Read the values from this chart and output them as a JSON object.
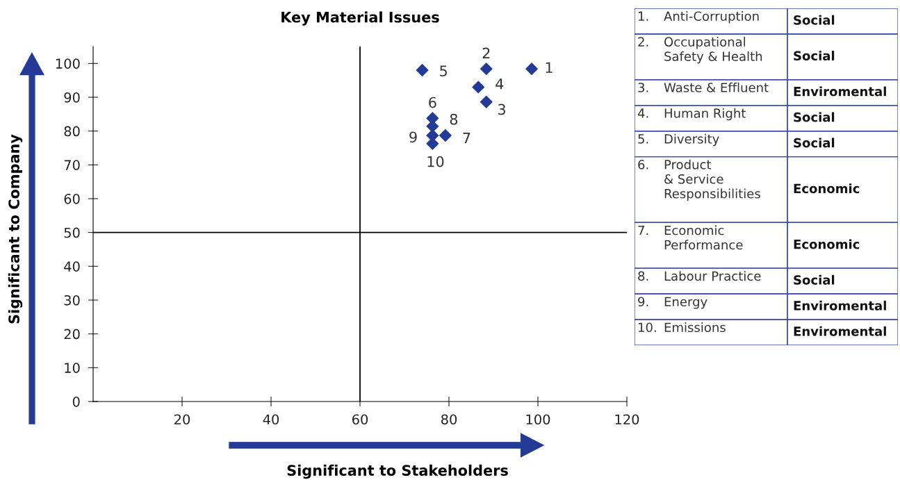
{
  "chart_data": [
    {
      "type": "scatter",
      "title": "Key Material Issues",
      "xlabel": "Significant to Stakeholders",
      "ylabel": "Significant to Company",
      "x": [
        98.6,
        88.4,
        88.4,
        86.6,
        74.0,
        76.3,
        79.2,
        76.3,
        76.3,
        76.3
      ],
      "series": [
        {
          "color": "#233b96",
          "values": [
            98.4,
            98.4,
            88.6,
            93.0,
            98.0,
            83.8,
            78.7,
            81.4,
            78.7,
            76.3
          ]
        }
      ],
      "marker": "diamond",
      "grid": false,
      "legend": false,
      "xlim": [
        0,
        120
      ],
      "xticks": [
        20,
        40,
        60,
        80,
        100,
        120
      ],
      "ylim": [
        0,
        105
      ],
      "yticks": [
        0,
        10,
        20,
        30,
        40,
        50,
        60,
        70,
        80,
        90,
        100
      ],
      "ref_lines": [
        {
          "axis": "x",
          "value": 60,
          "color": "#000000"
        },
        {
          "axis": "y",
          "value": 50,
          "color": "#000000"
        }
      ],
      "annotations": [
        {
          "text": "1",
          "x": 98.6,
          "y": 98.4
        },
        {
          "text": "2",
          "x": 88.4,
          "y": 98.4
        },
        {
          "text": "3",
          "x": 88.4,
          "y": 88.6
        },
        {
          "text": "4",
          "x": 86.6,
          "y": 93.0
        },
        {
          "text": "5",
          "x": 74.0,
          "y": 98.0
        },
        {
          "text": "6",
          "x": 76.3,
          "y": 83.8
        },
        {
          "text": "7",
          "x": 79.2,
          "y": 78.7
        },
        {
          "text": "8",
          "x": 76.3,
          "y": 81.4
        },
        {
          "text": "9",
          "x": 76.3,
          "y": 78.7
        },
        {
          "text": "10",
          "x": 76.3,
          "y": 76.3
        }
      ]
    },
    {
      "type": "other",
      "annotations": [
        "1.",
        "Anti-Corruption",
        "Social",
        "2.",
        "Occupational\nSafety & Health",
        "Social",
        "3.",
        "Waste & Effluent",
        "Enviromental",
        "4.",
        "Human Right",
        "Social",
        "5.",
        "Diversity",
        "Social",
        "6.",
        "Product\n& Service\nResponsibilities",
        "Economic",
        "7.",
        "Economic\nPerformance",
        "Economic",
        "8.",
        "Labour Practice",
        "Social",
        "9.",
        "Energy",
        "Enviromental",
        "10.",
        "Emissions",
        "Enviromental"
      ]
    }
  ]
}
